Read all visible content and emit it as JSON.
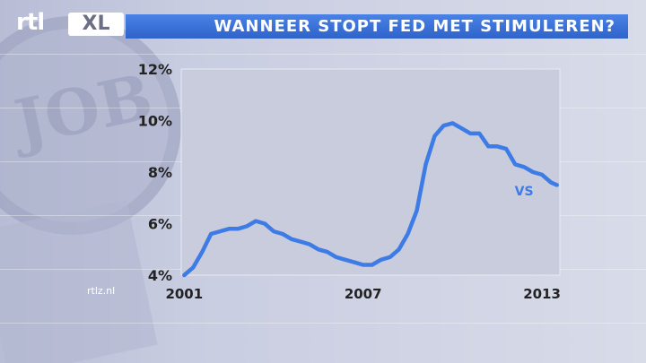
{
  "header": {
    "title": "WANNEER STOPT FED MET STIMULEREN?",
    "logo_text": "rtl",
    "logo_badge": "XL"
  },
  "footer": {
    "site": "rtlz.nl"
  },
  "colors": {
    "title_bar": "#3a6fd6",
    "series": "#3d7ce6",
    "plot_bg": "#c8cbdc"
  },
  "chart_data": {
    "type": "line",
    "title": "WANNEER STOPT FED MET STIMULEREN?",
    "xlabel": "",
    "ylabel": "",
    "xlim": [
      2000.9,
      2013.6
    ],
    "ylim": [
      4,
      12
    ],
    "x_ticks": [
      2001,
      2007,
      2013
    ],
    "x_tick_labels": [
      "2001",
      "2007",
      "2013"
    ],
    "y_ticks": [
      4,
      6,
      8,
      10,
      12
    ],
    "y_tick_labels": [
      "4%",
      "6%",
      "8%",
      "10%",
      "12%"
    ],
    "grid": false,
    "legend": "none",
    "series": [
      {
        "name": "VS",
        "x": [
          2001.0,
          2001.3,
          2001.6,
          2001.9,
          2002.2,
          2002.5,
          2002.8,
          2003.1,
          2003.4,
          2003.7,
          2004.0,
          2004.3,
          2004.6,
          2004.9,
          2005.2,
          2005.5,
          2005.8,
          2006.1,
          2006.4,
          2006.7,
          2007.0,
          2007.3,
          2007.6,
          2007.9,
          2008.2,
          2008.5,
          2008.8,
          2009.1,
          2009.4,
          2009.7,
          2010.0,
          2010.3,
          2010.6,
          2010.9,
          2011.2,
          2011.5,
          2011.8,
          2012.1,
          2012.4,
          2012.7,
          2013.0,
          2013.3,
          2013.5
        ],
        "y": [
          4.0,
          4.3,
          4.9,
          5.6,
          5.7,
          5.8,
          5.8,
          5.9,
          6.1,
          6.0,
          5.7,
          5.6,
          5.4,
          5.3,
          5.2,
          5.0,
          4.9,
          4.7,
          4.6,
          4.5,
          4.4,
          4.4,
          4.6,
          4.7,
          5.0,
          5.6,
          6.5,
          8.3,
          9.4,
          9.8,
          9.9,
          9.7,
          9.5,
          9.5,
          9.0,
          9.0,
          8.9,
          8.3,
          8.2,
          8.0,
          7.9,
          7.6,
          7.5
        ]
      }
    ],
    "annotations": [
      {
        "text": "VS",
        "x": 2012.4,
        "y": 7.1
      }
    ]
  }
}
